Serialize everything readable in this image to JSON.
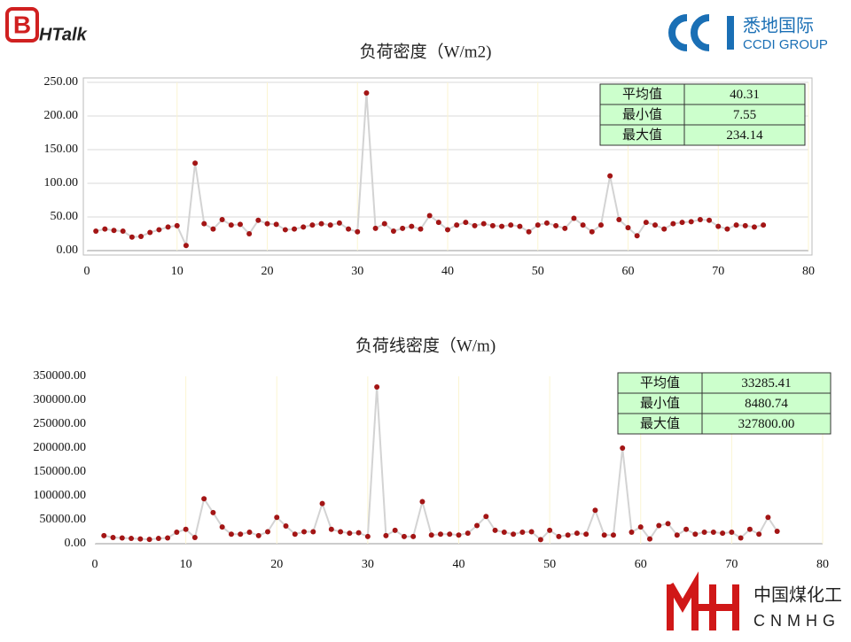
{
  "header": {
    "logo_mark": "B",
    "logo_text": "HTalk",
    "brand_cn": "悉地国际",
    "brand_en": "CCDI GROUP"
  },
  "footer": {
    "brand_cn": "中国煤化工",
    "brand_en": "CNMHG"
  },
  "chart_data": [
    {
      "type": "line",
      "title": "负荷密度（W/m2)",
      "x": [
        1,
        2,
        3,
        4,
        5,
        6,
        7,
        8,
        9,
        10,
        11,
        12,
        13,
        14,
        15,
        16,
        17,
        18,
        19,
        20,
        21,
        22,
        23,
        24,
        25,
        26,
        27,
        28,
        29,
        30,
        31,
        32,
        33,
        34,
        35,
        36,
        37,
        38,
        39,
        40,
        41,
        42,
        43,
        44,
        45,
        46,
        47,
        48,
        49,
        50,
        51,
        52,
        53,
        54,
        55,
        56,
        57,
        58,
        59,
        60,
        61,
        62,
        63,
        64,
        65,
        66,
        67,
        68,
        69,
        70,
        71,
        72,
        73,
        74,
        75
      ],
      "series": [
        {
          "color": "#d3d3d3",
          "marker_color": "#a31515",
          "values": [
            29,
            32,
            30,
            29,
            20,
            21,
            27,
            31,
            35,
            37,
            7.55,
            130,
            40,
            32,
            46,
            38,
            39,
            25,
            45,
            40,
            39,
            31,
            32,
            35,
            38,
            40,
            38,
            41,
            32,
            28,
            234.14,
            33,
            40,
            29,
            33,
            36,
            32,
            52,
            42,
            31,
            38,
            42,
            37,
            40,
            37,
            36,
            38,
            36,
            28,
            38,
            41,
            37,
            33,
            48,
            38,
            28,
            38,
            111,
            46,
            34,
            22,
            42,
            38,
            32,
            40,
            42,
            43,
            46,
            45,
            36,
            32,
            38,
            37,
            35,
            38
          ]
        }
      ],
      "xlim": [
        0,
        80
      ],
      "xticks": [
        0,
        10,
        20,
        30,
        40,
        50,
        60,
        70,
        80
      ],
      "ylim": [
        0,
        250
      ],
      "yticks": [
        {
          "value": 0,
          "label": "0.00"
        },
        {
          "value": 50,
          "label": "50.00"
        },
        {
          "value": 100,
          "label": "100.00"
        },
        {
          "value": 150,
          "label": "150.00"
        },
        {
          "value": 200,
          "label": "200.00"
        },
        {
          "value": 250,
          "label": "250.00"
        }
      ],
      "grid": "y",
      "stats": [
        [
          "平均值",
          "40.31"
        ],
        [
          "最小值",
          "7.55"
        ],
        [
          "最大值",
          "234.14"
        ]
      ]
    },
    {
      "type": "line",
      "title": "负荷线密度（W/m)",
      "x": [
        1,
        2,
        3,
        4,
        5,
        6,
        7,
        8,
        9,
        10,
        11,
        12,
        13,
        14,
        15,
        16,
        17,
        18,
        19,
        20,
        21,
        22,
        23,
        24,
        25,
        26,
        27,
        28,
        29,
        30,
        31,
        32,
        33,
        34,
        35,
        36,
        37,
        38,
        39,
        40,
        41,
        42,
        43,
        44,
        45,
        46,
        47,
        48,
        49,
        50,
        51,
        52,
        53,
        54,
        55,
        56,
        57,
        58,
        59,
        60,
        61,
        62,
        63,
        64,
        65,
        66,
        67,
        68,
        69,
        70,
        71,
        72,
        73,
        74,
        75
      ],
      "series": [
        {
          "color": "#d3d3d3",
          "marker_color": "#a31515",
          "values": [
            17000,
            13000,
            12000,
            11000,
            10000,
            9000,
            11000,
            12000,
            24000,
            30000,
            13000,
            94000,
            65000,
            35000,
            20000,
            20000,
            24000,
            17000,
            25000,
            55000,
            37000,
            20000,
            25000,
            25000,
            84000,
            30000,
            25000,
            22000,
            23000,
            15000,
            327800,
            17000,
            28000,
            15000,
            15000,
            88000,
            18000,
            20000,
            20000,
            18000,
            22000,
            38000,
            57000,
            28000,
            24000,
            20000,
            24000,
            25000,
            8480.74,
            28000,
            15000,
            18000,
            22000,
            20000,
            70000,
            18000,
            18000,
            200000,
            24000,
            35000,
            10000,
            38000,
            42000,
            18000,
            30000,
            20000,
            24000,
            24000,
            22000,
            24000,
            12000,
            30000,
            20000,
            55000,
            26000
          ]
        }
      ],
      "xlim": [
        0,
        80
      ],
      "xticks": [
        0,
        10,
        20,
        30,
        40,
        50,
        60,
        70,
        80
      ],
      "ylim": [
        0,
        350000
      ],
      "yticks": [
        {
          "value": 0,
          "label": "0.00"
        },
        {
          "value": 50000,
          "label": "50000.00"
        },
        {
          "value": 100000,
          "label": "100000.00"
        },
        {
          "value": 150000,
          "label": "150000.00"
        },
        {
          "value": 200000,
          "label": "200000.00"
        },
        {
          "value": 250000,
          "label": "250000.00"
        },
        {
          "value": 300000,
          "label": "300000.00"
        },
        {
          "value": 350000,
          "label": "350000.00"
        }
      ],
      "grid": "x",
      "stats": [
        [
          "平均值",
          "33285.41"
        ],
        [
          "最小值",
          "8480.74"
        ],
        [
          "最大值",
          "327800.00"
        ]
      ]
    }
  ]
}
